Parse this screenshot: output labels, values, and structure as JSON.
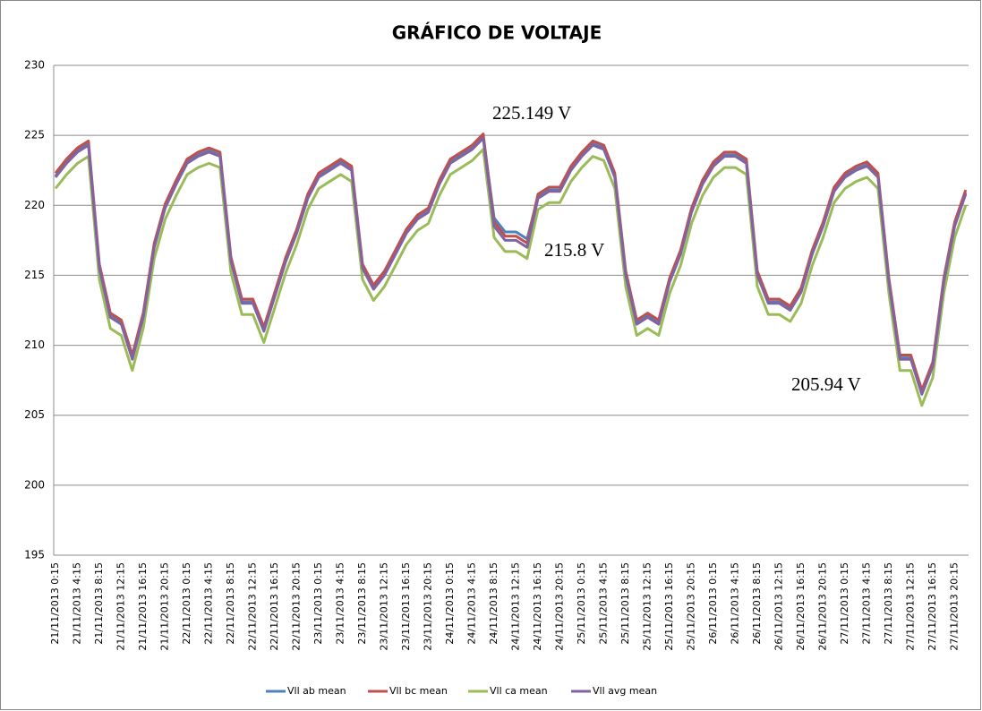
{
  "chart_data": {
    "type": "line",
    "title": "GRÁFICO DE VOLTAJE",
    "categories": [
      "21/11/2013 0:15",
      null,
      "21/11/2013 4:15",
      null,
      "21/11/2013 8:15",
      null,
      "21/11/2013 12:15",
      null,
      "21/11/2013 16:15",
      null,
      "21/11/2013 20:15",
      null,
      "22/11/2013 0:15",
      null,
      "22/11/2013 4:15",
      null,
      "22/11/2013 8:15",
      null,
      "22/11/2013 12:15",
      null,
      "22/11/2013 16:15",
      null,
      "22/11/2013 20:15",
      null,
      "23/11/2013 0:15",
      null,
      "23/11/2013 4:15",
      null,
      "23/11/2013 8:15",
      null,
      "23/11/2013 12:15",
      null,
      "23/11/2013 16:15",
      null,
      "23/11/2013 20:15",
      null,
      "24/11/2013 0:15",
      null,
      "24/11/2013 4:15",
      null,
      "24/11/2013 8:15",
      null,
      "24/11/2013 12:15",
      null,
      "24/11/2013 16:15",
      null,
      "24/11/2013 20:15",
      null,
      "25/11/2013 0:15",
      null,
      "25/11/2013 4:15",
      null,
      "25/11/2013 8:15",
      null,
      "25/11/2013 12:15",
      null,
      "25/11/2013 16:15",
      null,
      "25/11/2013 20:15",
      null,
      "26/11/2013 0:15",
      null,
      "26/11/2013 4:15",
      null,
      "26/11/2013 8:15",
      null,
      "26/11/2013 12:15",
      null,
      "26/11/2013 16:15",
      null,
      "26/11/2013 20:15",
      null,
      "27/11/2013 0:15",
      null,
      "27/11/2013 4:15",
      null,
      "27/11/2013 8:15",
      null,
      "27/11/2013 12:15",
      null,
      "27/11/2013 16:15",
      null,
      "27/11/2013 20:15",
      null
    ],
    "series": [
      {
        "name": "Vll ab mean",
        "color": "#4f81bd",
        "values": [
          222.1,
          223.1,
          223.9,
          224.4,
          215.6,
          212.1,
          211.6,
          209.1,
          212.1,
          217.1,
          219.9,
          221.6,
          223.1,
          223.6,
          223.9,
          223.6,
          216.1,
          213.1,
          213.1,
          211.1,
          213.6,
          216.1,
          218.1,
          220.6,
          222.1,
          222.6,
          223.1,
          222.6,
          215.6,
          214.1,
          215.1,
          216.6,
          218.1,
          219.1,
          219.6,
          221.6,
          223.1,
          223.6,
          224.1,
          224.9,
          219.1,
          218.1,
          218.1,
          217.6,
          220.6,
          221.1,
          221.1,
          222.6,
          223.6,
          224.4,
          224.1,
          222.1,
          215.1,
          211.6,
          212.1,
          211.6,
          214.6,
          216.6,
          219.6,
          221.6,
          222.9,
          223.6,
          223.6,
          223.1,
          215.1,
          213.1,
          213.1,
          212.6,
          213.9,
          216.6,
          218.6,
          221.1,
          222.1,
          222.6,
          222.9,
          222.1,
          214.6,
          209.1,
          209.1,
          206.6,
          208.6,
          214.6,
          218.6,
          220.9
        ]
      },
      {
        "name": "Vll bc mean",
        "color": "#c0504d",
        "values": [
          222.3,
          223.3,
          224.1,
          224.6,
          215.8,
          212.3,
          211.8,
          209.3,
          212.3,
          217.3,
          220.1,
          221.8,
          223.3,
          223.8,
          224.1,
          223.8,
          216.3,
          213.3,
          213.3,
          211.3,
          213.8,
          216.3,
          218.3,
          220.8,
          222.3,
          222.8,
          223.3,
          222.8,
          215.8,
          214.3,
          215.3,
          216.8,
          218.3,
          219.3,
          219.8,
          221.8,
          223.3,
          223.8,
          224.3,
          225.1,
          218.8,
          217.8,
          217.8,
          217.3,
          220.8,
          221.3,
          221.3,
          222.8,
          223.8,
          224.6,
          224.3,
          222.3,
          215.3,
          211.8,
          212.3,
          211.8,
          214.8,
          216.8,
          219.8,
          221.8,
          223.1,
          223.8,
          223.8,
          223.3,
          215.3,
          213.3,
          213.3,
          212.8,
          214.1,
          216.8,
          218.8,
          221.3,
          222.3,
          222.8,
          223.1,
          222.3,
          214.8,
          209.3,
          209.3,
          206.8,
          208.8,
          214.8,
          218.8,
          221.1
        ]
      },
      {
        "name": "Vll ca mean",
        "color": "#9bbb59",
        "values": [
          221.2,
          222.2,
          223,
          223.5,
          214.7,
          211.2,
          210.7,
          208.2,
          211.2,
          216.2,
          219,
          220.7,
          222.2,
          222.7,
          223,
          222.7,
          215.2,
          212.2,
          212.2,
          210.2,
          212.7,
          215.2,
          217.2,
          219.7,
          221.2,
          221.7,
          222.2,
          221.7,
          214.7,
          213.2,
          214.2,
          215.7,
          217.2,
          218.2,
          218.7,
          220.7,
          222.2,
          222.7,
          223.2,
          224,
          217.7,
          216.7,
          216.7,
          216.2,
          219.7,
          220.2,
          220.2,
          221.7,
          222.7,
          223.5,
          223.2,
          221.2,
          214.2,
          210.7,
          211.2,
          210.7,
          213.7,
          215.7,
          218.7,
          220.7,
          222,
          222.7,
          222.7,
          222.2,
          214.2,
          212.2,
          212.2,
          211.7,
          213,
          215.7,
          217.7,
          220.2,
          221.2,
          221.7,
          222,
          221.2,
          213.7,
          208.2,
          208.2,
          205.7,
          207.7,
          213.7,
          217.7,
          220
        ]
      },
      {
        "name": "Vll avg mean",
        "color": "#8064a2",
        "values": [
          222,
          223,
          223.8,
          224.3,
          215.5,
          212,
          211.5,
          209,
          212,
          217,
          219.8,
          221.5,
          223,
          223.5,
          223.8,
          223.5,
          216,
          213,
          213,
          211,
          213.5,
          216,
          218,
          220.5,
          222,
          222.5,
          223,
          222.5,
          215.5,
          214,
          215,
          216.5,
          218,
          219,
          219.5,
          221.5,
          223,
          223.5,
          224,
          224.8,
          218.5,
          217.5,
          217.5,
          217,
          220.5,
          221,
          221,
          222.5,
          223.5,
          224.3,
          224,
          222,
          215,
          211.5,
          212,
          211.5,
          214.5,
          216.5,
          219.5,
          221.5,
          222.8,
          223.5,
          223.5,
          223,
          215,
          213,
          213,
          212.5,
          213.8,
          216.5,
          218.5,
          221,
          222,
          222.5,
          222.8,
          222,
          214.5,
          209,
          209,
          206.5,
          208.5,
          214.5,
          218.5,
          220.8
        ]
      }
    ],
    "ylim": [
      195,
      230
    ],
    "yticks": [
      195,
      200,
      205,
      210,
      215,
      220,
      225,
      230
    ],
    "grid": true,
    "legend": "bottom",
    "annotations": [
      "225.149 V",
      "215.8 V",
      "205.94 V"
    ]
  }
}
